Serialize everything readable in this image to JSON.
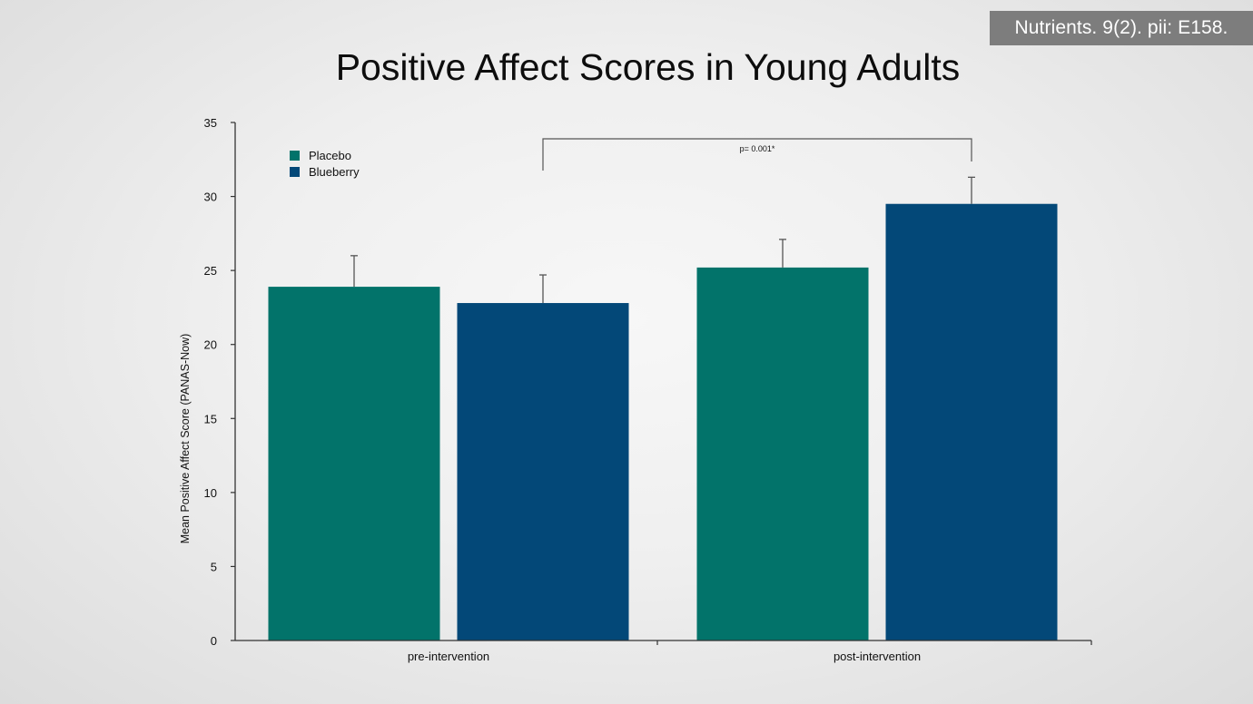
{
  "citation": "Nutrients. 9(2). pii: E158.",
  "colors": {
    "placebo": "#02736a",
    "blueberry": "#034878",
    "axis": "#333333",
    "bracket": "#555555"
  },
  "chart_data": {
    "type": "bar",
    "title": "Positive Affect Scores in Young Adults",
    "xlabel": "",
    "ylabel": "Mean Positive Affect Score (PANAS-Now)",
    "ylim": [
      0,
      35
    ],
    "yticks": [
      "0",
      "5",
      "10",
      "15",
      "20",
      "25",
      "30",
      "35"
    ],
    "grid": false,
    "legend_position": "top-left",
    "categories": [
      "pre-intervention",
      "post-intervention"
    ],
    "series": [
      {
        "name": "Placebo",
        "values": [
          23.9,
          25.2
        ],
        "error": [
          2.1,
          1.9
        ]
      },
      {
        "name": "Blueberry",
        "values": [
          22.8,
          29.5
        ],
        "error": [
          1.9,
          1.8
        ]
      }
    ],
    "annotations": [
      {
        "text": "p= 0.001*",
        "from": "pre-intervention Blueberry",
        "to": "post-intervention Blueberry"
      }
    ]
  }
}
